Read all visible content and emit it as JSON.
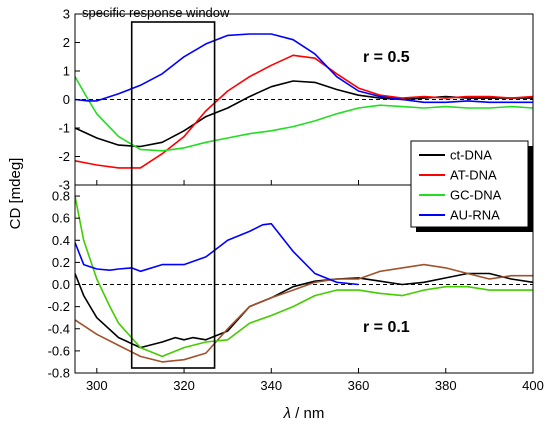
{
  "chart_data": {
    "type": "line",
    "xlabel_symbol": "λ",
    "xlabel_unit": " / nm",
    "ylabel": "CD [mdeg]",
    "annotation": "specific response window",
    "response_window": [
      308,
      327
    ],
    "xlim": [
      295,
      400
    ],
    "x_ticks": [
      300,
      320,
      340,
      360,
      380,
      400
    ],
    "legend": {
      "placement": "right",
      "entries": [
        {
          "name": "ct-DNA",
          "color": "#000000"
        },
        {
          "name": "AT-DNA",
          "color": "#ff0000"
        },
        {
          "name": "GC-DNA",
          "color": "#22dd22"
        },
        {
          "name": "AU-RNA",
          "color": "#0000ff"
        }
      ]
    },
    "panels": [
      {
        "label": "r = 0.5",
        "ylim": [
          -3,
          3
        ],
        "y_ticks": [
          -3,
          -2,
          -1,
          0,
          1,
          2,
          3
        ],
        "zero_line": true,
        "series": [
          {
            "name": "ct-DNA",
            "color": "#000000",
            "x": [
              295,
              300,
              305,
              310,
              315,
              320,
              325,
              330,
              335,
              340,
              345,
              350,
              355,
              360,
              365,
              370,
              375,
              380,
              385,
              390,
              395,
              400
            ],
            "y": [
              -1.0,
              -1.35,
              -1.6,
              -1.65,
              -1.5,
              -1.1,
              -0.6,
              -0.3,
              0.1,
              0.45,
              0.65,
              0.6,
              0.35,
              0.15,
              0.05,
              0.0,
              0.05,
              0.1,
              0.05,
              0.05,
              0.05,
              0.05
            ]
          },
          {
            "name": "AT-DNA",
            "color": "#ff0000",
            "x": [
              295,
              300,
              305,
              310,
              315,
              320,
              325,
              330,
              335,
              340,
              345,
              350,
              355,
              360,
              365,
              370,
              375,
              380,
              385,
              390,
              395,
              400
            ],
            "y": [
              -2.15,
              -2.3,
              -2.4,
              -2.4,
              -1.9,
              -1.3,
              -0.4,
              0.3,
              0.8,
              1.2,
              1.55,
              1.45,
              0.9,
              0.4,
              0.15,
              0.05,
              0.1,
              0.05,
              0.1,
              0.1,
              0.05,
              0.1
            ]
          },
          {
            "name": "GC-DNA",
            "color": "#22dd22",
            "x": [
              295,
              298,
              300,
              305,
              310,
              315,
              320,
              325,
              330,
              335,
              340,
              345,
              350,
              355,
              360,
              365,
              370,
              375,
              380,
              385,
              390,
              395,
              400
            ],
            "y": [
              0.8,
              0.0,
              -0.5,
              -1.3,
              -1.75,
              -1.8,
              -1.7,
              -1.5,
              -1.35,
              -1.2,
              -1.1,
              -0.95,
              -0.75,
              -0.5,
              -0.3,
              -0.2,
              -0.25,
              -0.3,
              -0.25,
              -0.3,
              -0.3,
              -0.25,
              -0.3
            ]
          },
          {
            "name": "AU-RNA",
            "color": "#0000ff",
            "x": [
              295,
              298,
              300,
              305,
              310,
              315,
              320,
              325,
              330,
              335,
              340,
              345,
              350,
              355,
              360,
              365,
              370,
              375,
              380,
              385,
              390,
              395,
              400
            ],
            "y": [
              0.0,
              -0.05,
              -0.05,
              0.2,
              0.5,
              0.9,
              1.5,
              1.95,
              2.25,
              2.3,
              2.3,
              2.1,
              1.6,
              0.8,
              0.3,
              0.1,
              0.0,
              -0.1,
              -0.1,
              -0.05,
              -0.1,
              -0.1,
              -0.1
            ]
          }
        ]
      },
      {
        "label": "r = 0.1",
        "ylim": [
          -0.8,
          0.9
        ],
        "y_ticks": [
          -0.8,
          -0.6,
          -0.4,
          -0.2,
          0.0,
          0.2,
          0.4,
          0.6,
          0.8
        ],
        "tick_labels": [
          "-0.8",
          "-0.6",
          "-0.4",
          "-0.2",
          "0.0",
          "0.2",
          "0.4",
          "0.6",
          "0.8"
        ],
        "zero_line": true,
        "series": [
          {
            "name": "ct-DNA",
            "color": "#000000",
            "x": [
              295,
              297,
              300,
              305,
              310,
              315,
              318,
              320,
              322,
              325,
              330,
              335,
              340,
              345,
              350,
              355,
              360,
              365,
              370,
              375,
              380,
              385,
              390,
              395,
              400
            ],
            "y": [
              0.1,
              -0.1,
              -0.3,
              -0.48,
              -0.57,
              -0.52,
              -0.48,
              -0.5,
              -0.48,
              -0.5,
              -0.42,
              -0.2,
              -0.12,
              -0.02,
              0.03,
              0.05,
              0.06,
              0.03,
              0.0,
              0.02,
              0.06,
              0.1,
              0.1,
              0.05,
              0.02
            ]
          },
          {
            "name": "AT-DNA",
            "color": "#a0522d",
            "x": [
              295,
              300,
              305,
              310,
              315,
              320,
              325,
              330,
              335,
              340,
              345,
              350,
              355,
              360,
              365,
              370,
              375,
              380,
              385,
              390,
              395,
              400
            ],
            "y": [
              -0.32,
              -0.45,
              -0.55,
              -0.65,
              -0.7,
              -0.68,
              -0.62,
              -0.4,
              -0.2,
              -0.12,
              -0.05,
              0.02,
              0.05,
              0.05,
              0.12,
              0.15,
              0.18,
              0.15,
              0.1,
              0.05,
              0.08,
              0.08
            ]
          },
          {
            "name": "GC-DNA",
            "color": "#44cc00",
            "x": [
              295,
              297,
              300,
              303,
              305,
              310,
              315,
              320,
              325,
              330,
              335,
              340,
              345,
              350,
              355,
              360,
              365,
              370,
              375,
              380,
              385,
              390,
              395,
              400
            ],
            "y": [
              0.8,
              0.4,
              0.05,
              -0.2,
              -0.35,
              -0.57,
              -0.65,
              -0.57,
              -0.52,
              -0.5,
              -0.35,
              -0.28,
              -0.2,
              -0.1,
              -0.05,
              -0.05,
              -0.08,
              -0.1,
              -0.05,
              -0.02,
              -0.02,
              -0.05,
              -0.05,
              -0.05
            ]
          },
          {
            "name": "AU-RNA",
            "color": "#0000ff",
            "x": [
              295,
              297,
              300,
              303,
              305,
              308,
              310,
              315,
              320,
              325,
              330,
              335,
              338,
              340,
              345,
              350,
              355,
              360
            ],
            "y": [
              0.38,
              0.18,
              0.14,
              0.13,
              0.14,
              0.15,
              0.12,
              0.18,
              0.18,
              0.25,
              0.4,
              0.48,
              0.54,
              0.55,
              0.3,
              0.1,
              0.02,
              0.0
            ]
          }
        ]
      }
    ]
  }
}
